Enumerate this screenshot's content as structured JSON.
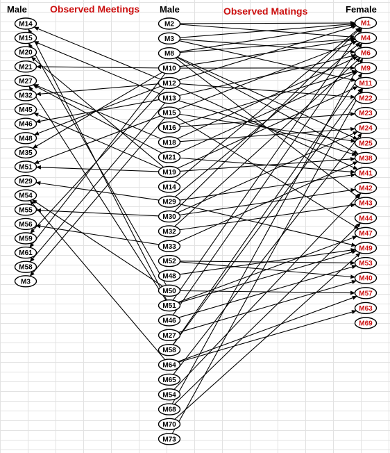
{
  "headers": {
    "male_left": "Male",
    "meetings": "Observed Meetings",
    "male_mid": "Male",
    "matings": "Observed Matings",
    "female": "Female"
  },
  "colors": {
    "male_text": "#000000",
    "female_text": "#cc1111",
    "edge": "#000000",
    "title_red": "#cc1111"
  },
  "left_males": [
    "M14",
    "M15",
    "M20",
    "M21",
    "M27",
    "M32",
    "M45",
    "M46",
    "M48",
    "M35",
    "M51",
    "M29",
    "M54",
    "M55",
    "M56",
    "M59",
    "M61",
    "M58",
    "M3"
  ],
  "mid_males": [
    "M2",
    "M3",
    "M8",
    "M10",
    "M12",
    "M13",
    "M15",
    "M16",
    "M18",
    "M21",
    "M19",
    "M14",
    "M29",
    "M30",
    "M32",
    "M33",
    "M52",
    "M48",
    "M50",
    "M51",
    "M46",
    "M27",
    "M58",
    "M64",
    "M65",
    "M54",
    "M68",
    "M70",
    "M73"
  ],
  "females": [
    "M1",
    "M4",
    "M6",
    "M9",
    "M11",
    "M22",
    "M23",
    "M24",
    "M25",
    "M38",
    "M41",
    "M42",
    "M43",
    "M44",
    "M47",
    "M49",
    "M53",
    "M40",
    "M57",
    "M63",
    "M69"
  ],
  "meetings": [
    [
      "M14",
      "M12"
    ],
    [
      "M14",
      "M51"
    ],
    [
      "M15",
      "M13"
    ],
    [
      "M15",
      "M50"
    ],
    [
      "M20",
      "M19"
    ],
    [
      "M21",
      "M10"
    ],
    [
      "M27",
      "M18"
    ],
    [
      "M27",
      "M21"
    ],
    [
      "M27",
      "M51"
    ],
    [
      "M32",
      "M12"
    ],
    [
      "M45",
      "M19"
    ],
    [
      "M46",
      "M13"
    ],
    [
      "M48",
      "M12"
    ],
    [
      "M35",
      "M10"
    ],
    [
      "M51",
      "M19"
    ],
    [
      "M51",
      "M15"
    ],
    [
      "M29",
      "M29"
    ],
    [
      "M54",
      "M50"
    ],
    [
      "M54",
      "M64"
    ],
    [
      "M55",
      "M30"
    ],
    [
      "M56",
      "M33"
    ],
    [
      "M59",
      "M12"
    ],
    [
      "M61",
      "M10"
    ],
    [
      "M58",
      "M13"
    ],
    [
      "M3",
      "M15"
    ]
  ],
  "matings": [
    [
      "M2",
      "M1"
    ],
    [
      "M2",
      "M4"
    ],
    [
      "M3",
      "M1"
    ],
    [
      "M3",
      "M6"
    ],
    [
      "M3",
      "M11"
    ],
    [
      "M8",
      "M1"
    ],
    [
      "M8",
      "M4"
    ],
    [
      "M8",
      "M25"
    ],
    [
      "M8",
      "M38"
    ],
    [
      "M8",
      "M43"
    ],
    [
      "M10",
      "M4"
    ],
    [
      "M10",
      "M9"
    ],
    [
      "M12",
      "M1"
    ],
    [
      "M12",
      "M22"
    ],
    [
      "M12",
      "M41"
    ],
    [
      "M13",
      "M6"
    ],
    [
      "M13",
      "M38"
    ],
    [
      "M15",
      "M4"
    ],
    [
      "M15",
      "M25"
    ],
    [
      "M15",
      "M47"
    ],
    [
      "M16",
      "M9"
    ],
    [
      "M16",
      "M23"
    ],
    [
      "M18",
      "M6"
    ],
    [
      "M18",
      "M24"
    ],
    [
      "M21",
      "M9"
    ],
    [
      "M21",
      "M41"
    ],
    [
      "M19",
      "M38"
    ],
    [
      "M19",
      "M11"
    ],
    [
      "M14",
      "M1"
    ],
    [
      "M29",
      "M4"
    ],
    [
      "M29",
      "M41"
    ],
    [
      "M29",
      "M49"
    ],
    [
      "M30",
      "M1"
    ],
    [
      "M30",
      "M24"
    ],
    [
      "M30",
      "M42"
    ],
    [
      "M32",
      "M6"
    ],
    [
      "M32",
      "M43"
    ],
    [
      "M33",
      "M38"
    ],
    [
      "M52",
      "M53"
    ],
    [
      "M52",
      "M40"
    ],
    [
      "M48",
      "M49"
    ],
    [
      "M50",
      "M57"
    ],
    [
      "M51",
      "M1"
    ],
    [
      "M51",
      "M47"
    ],
    [
      "M51",
      "M49"
    ],
    [
      "M46",
      "M4"
    ],
    [
      "M27",
      "M40"
    ],
    [
      "M58",
      "M9"
    ],
    [
      "M58",
      "M11"
    ],
    [
      "M64",
      "M57"
    ],
    [
      "M64",
      "M63"
    ],
    [
      "M65",
      "M24"
    ],
    [
      "M54",
      "M42"
    ],
    [
      "M68",
      "M6"
    ],
    [
      "M70",
      "M49"
    ],
    [
      "M73",
      "M11"
    ],
    [
      "M68",
      "M44"
    ],
    [
      "M46",
      "M53"
    ]
  ]
}
